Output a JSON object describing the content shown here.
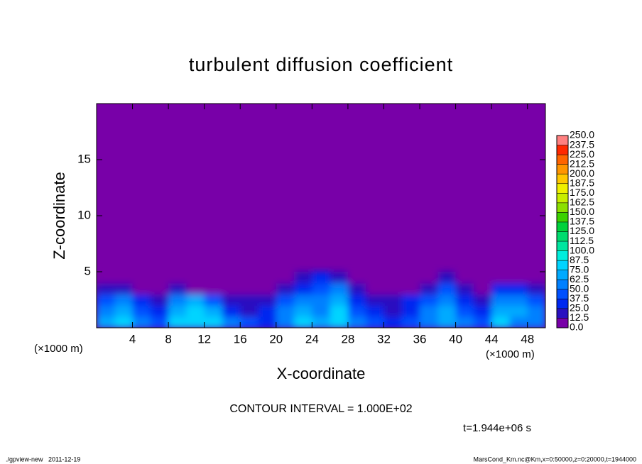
{
  "chart_data": {
    "type": "contour",
    "title": "turbulent diffusion coefficient",
    "xlabel": "X-coordinate",
    "ylabel": "Z-coordinate",
    "x_unit": "(×1000 m)",
    "annotation": "CONTOUR INTERVAL = 1.000E+02",
    "time_label": "t=1.944e+06 s",
    "footer_left": "./gpview-new   2011-12-19",
    "footer_right": "MarsCond_Km.nc@Km,x=0:50000,z=0:20000,t=1944000",
    "xlim": [
      0,
      50
    ],
    "ylim": [
      0,
      20
    ],
    "xticks": [
      4,
      8,
      12,
      16,
      20,
      24,
      28,
      32,
      36,
      40,
      44,
      48
    ],
    "yticks": [
      5,
      10,
      15
    ],
    "x": [
      1,
      3,
      5,
      7,
      9,
      11,
      13,
      15,
      17,
      19,
      21,
      23,
      25,
      27,
      29,
      31,
      33,
      35,
      37,
      39,
      41,
      43,
      45,
      47,
      49
    ],
    "y": [
      0.5,
      1.5,
      2.5,
      3.5,
      4.5
    ],
    "z": [
      [
        70,
        80,
        60,
        40,
        75,
        85,
        80,
        50,
        40,
        35,
        60,
        75,
        70,
        80,
        50,
        40,
        35,
        45,
        60,
        70,
        50,
        40,
        75,
        60,
        55
      ],
      [
        60,
        70,
        45,
        30,
        70,
        80,
        70,
        30,
        20,
        25,
        55,
        70,
        60,
        75,
        40,
        25,
        20,
        35,
        55,
        65,
        40,
        30,
        70,
        65,
        50
      ],
      [
        40,
        50,
        30,
        20,
        60,
        70,
        40,
        20,
        15,
        20,
        45,
        50,
        55,
        70,
        30,
        15,
        15,
        25,
        45,
        60,
        35,
        20,
        55,
        55,
        40
      ],
      [
        20,
        15,
        10,
        5,
        15,
        10,
        10,
        5,
        5,
        10,
        20,
        30,
        45,
        50,
        15,
        5,
        5,
        10,
        20,
        45,
        20,
        5,
        30,
        25,
        15
      ],
      [
        0,
        0,
        0,
        0,
        0,
        0,
        0,
        0,
        0,
        0,
        5,
        15,
        25,
        15,
        0,
        0,
        0,
        0,
        0,
        15,
        5,
        0,
        0,
        0,
        0
      ]
    ],
    "levels": [
      {
        "value": 0,
        "label": "0.0"
      },
      12.5,
      {
        "value": 25,
        "label": "25.0"
      },
      37.5,
      {
        "value": 50,
        "label": "50.0"
      },
      62.5,
      {
        "value": 75,
        "label": "75.0"
      },
      87.5,
      {
        "value": 100,
        "label": "100.0"
      },
      112.5,
      {
        "value": 125,
        "label": "125.0"
      },
      137.5,
      {
        "value": 150,
        "label": "150.0"
      },
      162.5,
      {
        "value": 175,
        "label": "175.0"
      },
      187.5,
      {
        "value": 200,
        "label": "200.0"
      },
      212.5,
      {
        "value": 225,
        "label": "225.0"
      },
      237.5,
      {
        "value": 250,
        "label": "250.0"
      }
    ],
    "colors": [
      "#7800a8",
      "#2a10c0",
      "#0028f0",
      "#0050ff",
      "#0080ff",
      "#00aaff",
      "#00d4ff",
      "#00eedd",
      "#00e6a0",
      "#00dc6e",
      "#00d23c",
      "#3cd200",
      "#8ce000",
      "#c8ee00",
      "#f0f000",
      "#ffc800",
      "#ff9600",
      "#ff6400",
      "#ff2800",
      "#ff8080"
    ]
  }
}
